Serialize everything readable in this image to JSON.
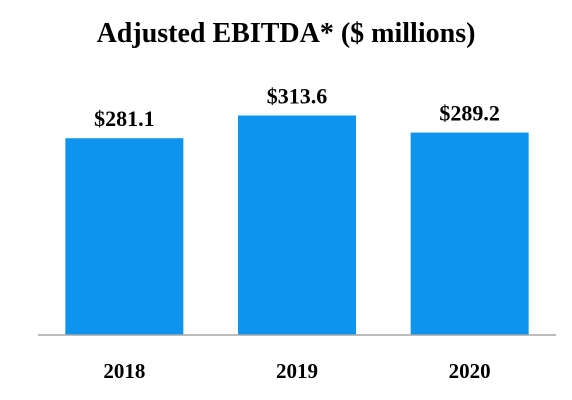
{
  "chart_data": {
    "type": "bar",
    "title": "Adjusted EBITDA* ($ millions)",
    "xlabel": "",
    "ylabel": "",
    "categories": [
      "2018",
      "2019",
      "2020"
    ],
    "values": [
      281.1,
      313.6,
      289.2
    ],
    "data_labels": [
      "$281.1",
      "$313.6",
      "$289.2"
    ],
    "ylim": [
      0,
      350
    ],
    "grid": false,
    "legend": "none",
    "bar_color": "#0d94ee",
    "axis_color": "#a6a6a6"
  }
}
